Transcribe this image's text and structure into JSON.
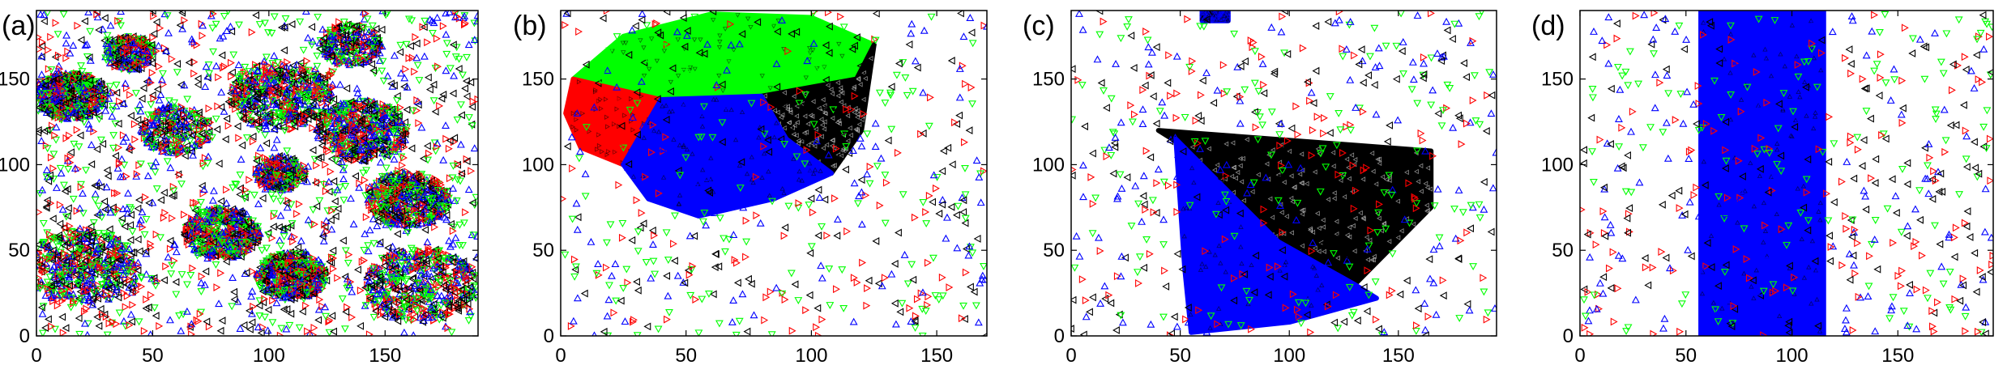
{
  "chart_data": [
    {
      "type": "scatter",
      "panel_label": "(a)",
      "xlim": [
        0,
        190
      ],
      "ylim": [
        0,
        190
      ],
      "xticks": [
        0,
        50,
        100,
        150
      ],
      "yticks": [
        0,
        50,
        100,
        150
      ],
      "grid": false,
      "markers": [
        {
          "color": "#ff0000",
          "marker": "triangle-right"
        },
        {
          "color": "#00ff00",
          "marker": "triangle-down"
        },
        {
          "color": "#0000ff",
          "marker": "triangle-up"
        },
        {
          "color": "#000000",
          "marker": "triangle-left"
        }
      ],
      "clusters": [
        {
          "x": 20,
          "y": 40,
          "r": 22,
          "density": "high"
        },
        {
          "x": 15,
          "y": 140,
          "r": 14,
          "density": "high"
        },
        {
          "x": 80,
          "y": 60,
          "r": 15,
          "density": "high"
        },
        {
          "x": 105,
          "y": 140,
          "r": 20,
          "density": "high"
        },
        {
          "x": 140,
          "y": 120,
          "r": 18,
          "density": "high"
        },
        {
          "x": 160,
          "y": 80,
          "r": 16,
          "density": "high"
        },
        {
          "x": 165,
          "y": 30,
          "r": 22,
          "density": "high"
        },
        {
          "x": 110,
          "y": 35,
          "r": 14,
          "density": "high"
        },
        {
          "x": 60,
          "y": 120,
          "r": 14,
          "density": "medium"
        },
        {
          "x": 105,
          "y": 95,
          "r": 10,
          "density": "medium"
        },
        {
          "x": 135,
          "y": 170,
          "r": 12,
          "density": "medium"
        },
        {
          "x": 40,
          "y": 165,
          "r": 10,
          "density": "medium"
        }
      ],
      "background_points": "uniform"
    },
    {
      "type": "scatter",
      "panel_label": "(b)",
      "xlim": [
        0,
        170
      ],
      "ylim": [
        0,
        190
      ],
      "xticks": [
        0,
        50,
        100,
        150
      ],
      "yticks": [
        0,
        50,
        100,
        150
      ],
      "grid": false,
      "markers": [
        {
          "color": "#ff0000",
          "marker": "triangle-right"
        },
        {
          "color": "#00ff00",
          "marker": "triangle-down"
        },
        {
          "color": "#0000ff",
          "marker": "triangle-up"
        },
        {
          "color": "#000000",
          "marker": "triangle-left"
        }
      ],
      "regions": [
        {
          "color": "#00ff00",
          "polygon": [
            [
              5,
              150
            ],
            [
              25,
              175
            ],
            [
              60,
              188
            ],
            [
              100,
              186
            ],
            [
              125,
              170
            ],
            [
              118,
              150
            ],
            [
              80,
              140
            ],
            [
              40,
              138
            ]
          ]
        },
        {
          "color": "#000000",
          "polygon": [
            [
              80,
              140
            ],
            [
              118,
              150
            ],
            [
              125,
              170
            ],
            [
              120,
              120
            ],
            [
              108,
              95
            ],
            [
              90,
              115
            ]
          ]
        },
        {
          "color": "#ff0000",
          "polygon": [
            [
              5,
              150
            ],
            [
              40,
              138
            ],
            [
              25,
              100
            ],
            [
              8,
              110
            ],
            [
              2,
              130
            ]
          ]
        },
        {
          "color": "#0000ff",
          "polygon": [
            [
              25,
              100
            ],
            [
              40,
              138
            ],
            [
              80,
              140
            ],
            [
              90,
              115
            ],
            [
              108,
              95
            ],
            [
              85,
              80
            ],
            [
              55,
              70
            ],
            [
              35,
              80
            ]
          ]
        }
      ],
      "background_points": "uniform"
    },
    {
      "type": "scatter",
      "panel_label": "(c)",
      "xlim": [
        0,
        195
      ],
      "ylim": [
        0,
        190
      ],
      "xticks": [
        0,
        50,
        100,
        150
      ],
      "yticks": [
        0,
        50,
        100,
        150
      ],
      "grid": false,
      "markers": [
        {
          "color": "#ff0000",
          "marker": "triangle-right"
        },
        {
          "color": "#00ff00",
          "marker": "triangle-down"
        },
        {
          "color": "#0000ff",
          "marker": "triangle-up"
        },
        {
          "color": "#000000",
          "marker": "triangle-left"
        }
      ],
      "regions": [
        {
          "color": "#000000",
          "polygon": [
            [
              40,
              120
            ],
            [
              165,
              108
            ],
            [
              165,
              75
            ],
            [
              130,
              30
            ],
            [
              95,
              55
            ],
            [
              55,
              108
            ]
          ]
        },
        {
          "color": "#0000ff",
          "polygon": [
            [
              48,
              115
            ],
            [
              95,
              55
            ],
            [
              130,
              30
            ],
            [
              140,
              22
            ],
            [
              100,
              8
            ],
            [
              55,
              2
            ],
            [
              52,
              40
            ]
          ]
        },
        {
          "color": "#0000ff",
          "polygon": [
            [
              60,
              190
            ],
            [
              72,
              190
            ],
            [
              72,
              184
            ],
            [
              60,
              184
            ]
          ]
        }
      ],
      "background_points": "uniform"
    },
    {
      "type": "scatter",
      "panel_label": "(d)",
      "xlim": [
        0,
        195
      ],
      "ylim": [
        0,
        190
      ],
      "xticks": [
        0,
        50,
        100,
        150
      ],
      "yticks": [
        0,
        50,
        100,
        150
      ],
      "grid": false,
      "markers": [
        {
          "color": "#ff0000",
          "marker": "triangle-right"
        },
        {
          "color": "#00ff00",
          "marker": "triangle-down"
        },
        {
          "color": "#0000ff",
          "marker": "triangle-up"
        },
        {
          "color": "#000000",
          "marker": "triangle-left"
        }
      ],
      "regions": [
        {
          "color": "#0000ff",
          "polygon": [
            [
              57,
              0
            ],
            [
              115,
              0
            ],
            [
              115,
              190
            ],
            [
              57,
              190
            ]
          ]
        }
      ],
      "background_points": "uniform"
    }
  ]
}
